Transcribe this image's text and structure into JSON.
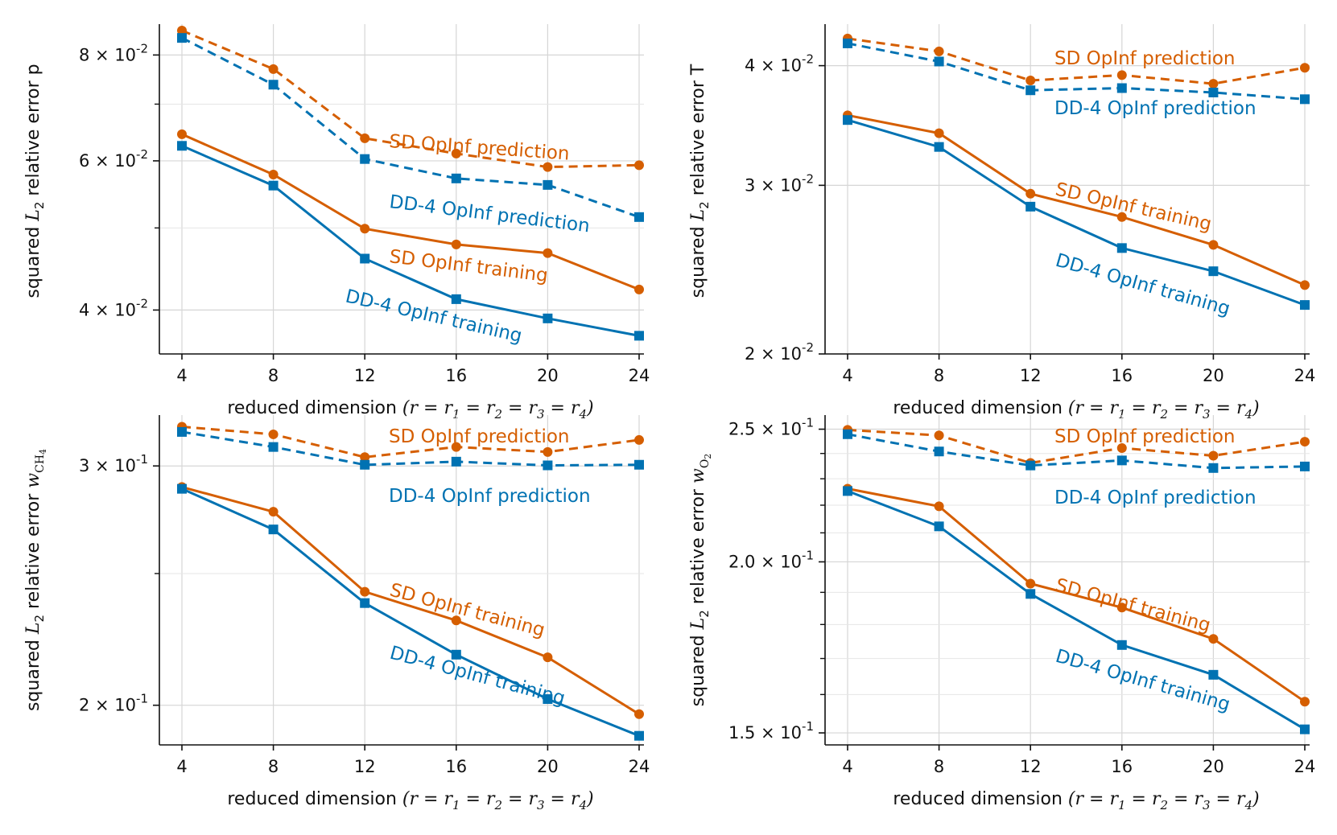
{
  "chart_data": [
    {
      "type": "line",
      "x": [
        4,
        8,
        12,
        16,
        20,
        24
      ],
      "xlabel": "reduced dimension (r = r1 = r2 = r3 = r4)",
      "ylabel": "squared L2 relative error p",
      "yscale": "log",
      "ylim": [
        0.0355,
        0.087
      ],
      "yticks_major": [
        {
          "v": 0.04,
          "label": "4 × 10^-2"
        },
        {
          "v": 0.06,
          "label": "6 × 10^-2"
        },
        {
          "v": 0.08,
          "label": "8 × 10^-2"
        }
      ],
      "yticks_minor": [
        0.05,
        0.07
      ],
      "series": [
        {
          "name": "SD OpInf prediction",
          "color": "#d55e00",
          "linestyle": "dashed",
          "marker": "circle",
          "values": [
            0.0855,
            0.077,
            0.0638,
            0.0612,
            0.059,
            0.0593
          ]
        },
        {
          "name": "DD-4 OpInf prediction",
          "color": "#0072b2",
          "linestyle": "dashed",
          "marker": "square",
          "values": [
            0.0838,
            0.0738,
            0.0603,
            0.0572,
            0.0562,
            0.0515
          ]
        },
        {
          "name": "SD OpInf training",
          "color": "#d55e00",
          "linestyle": "solid",
          "marker": "circle",
          "values": [
            0.0645,
            0.0578,
            0.0499,
            0.0478,
            0.0467,
            0.0423
          ]
        },
        {
          "name": "DD-4 OpInf training",
          "color": "#0072b2",
          "linestyle": "solid",
          "marker": "square",
          "values": [
            0.0625,
            0.0561,
            0.046,
            0.0412,
            0.0391,
            0.0373
          ]
        }
      ]
    },
    {
      "type": "line",
      "x": [
        4,
        8,
        12,
        16,
        20,
        24
      ],
      "xlabel": "reduced dimension (r = r1 = r2 = r3 = r4)",
      "ylabel": "squared L2 relative error T",
      "yscale": "log",
      "ylim": [
        0.02,
        0.0442
      ],
      "yticks_major": [
        {
          "v": 0.02,
          "label": "2 × 10^-2"
        },
        {
          "v": 0.03,
          "label": "3 × 10^-2"
        },
        {
          "v": 0.04,
          "label": "4 × 10^-2"
        }
      ],
      "yticks_minor": [],
      "series": [
        {
          "name": "SD OpInf prediction",
          "color": "#d55e00",
          "linestyle": "dashed",
          "marker": "circle",
          "values": [
            0.0427,
            0.0414,
            0.0386,
            0.0391,
            0.0383,
            0.0398
          ]
        },
        {
          "name": "DD-4 OpInf prediction",
          "color": "#0072b2",
          "linestyle": "dashed",
          "marker": "square",
          "values": [
            0.0422,
            0.0404,
            0.0377,
            0.0379,
            0.0375,
            0.0369
          ]
        },
        {
          "name": "SD OpInf training",
          "color": "#d55e00",
          "linestyle": "solid",
          "marker": "circle",
          "values": [
            0.0355,
            0.034,
            0.0294,
            0.0278,
            0.026,
            0.0236
          ]
        },
        {
          "name": "DD-4 OpInf training",
          "color": "#0072b2",
          "linestyle": "solid",
          "marker": "square",
          "values": [
            0.0351,
            0.0329,
            0.0285,
            0.0258,
            0.0244,
            0.0225
          ]
        }
      ]
    },
    {
      "type": "line",
      "x": [
        4,
        8,
        12,
        16,
        20,
        24
      ],
      "xlabel": "reduced dimension (r = r1 = r2 = r3 = r4)",
      "ylabel": "squared L2 relative error wCH4",
      "yscale": "log",
      "ylim": [
        0.187,
        0.327
      ],
      "yticks_major": [
        {
          "v": 0.2,
          "label": "2 × 10^-1"
        },
        {
          "v": 0.3,
          "label": "3 × 10^-1"
        }
      ],
      "yticks_minor": [
        0.25
      ],
      "series": [
        {
          "name": "SD OpInf prediction",
          "color": "#d55e00",
          "linestyle": "dashed",
          "marker": "circle",
          "values": [
            0.3206,
            0.3165,
            0.3045,
            0.3098,
            0.3072,
            0.3135
          ]
        },
        {
          "name": "DD-4 OpInf prediction",
          "color": "#0072b2",
          "linestyle": "dashed",
          "marker": "square",
          "values": [
            0.3178,
            0.3098,
            0.3006,
            0.3022,
            0.3003,
            0.3006
          ]
        },
        {
          "name": "SD OpInf training",
          "color": "#d55e00",
          "linestyle": "solid",
          "marker": "circle",
          "values": [
            0.2895,
            0.2776,
            0.2424,
            0.2309,
            0.2169,
            0.197
          ]
        },
        {
          "name": "DD-4 OpInf training",
          "color": "#0072b2",
          "linestyle": "solid",
          "marker": "square",
          "values": [
            0.2886,
            0.2694,
            0.2378,
            0.2179,
            0.2021,
            0.1899
          ]
        }
      ]
    },
    {
      "type": "line",
      "x": [
        4,
        8,
        12,
        16,
        20,
        24
      ],
      "xlabel": "reduced dimension (r = r1 = r2 = r3 = r4)",
      "ylabel": "squared L2 relative error wO2",
      "yscale": "log",
      "ylim": [
        0.147,
        0.256
      ],
      "yticks_major": [
        {
          "v": 0.15,
          "label": "1.5 × 10^-1"
        },
        {
          "v": 0.2,
          "label": "2.0 × 10^-1"
        },
        {
          "v": 0.25,
          "label": "2.5 × 10^-1"
        }
      ],
      "yticks_minor": [
        0.16,
        0.17,
        0.18,
        0.19,
        0.21,
        0.22,
        0.23,
        0.24
      ],
      "series": [
        {
          "name": "SD OpInf prediction",
          "color": "#d55e00",
          "linestyle": "dashed",
          "marker": "circle",
          "values": [
            0.2497,
            0.2474,
            0.2362,
            0.2422,
            0.2391,
            0.2448
          ]
        },
        {
          "name": "DD-4 OpInf prediction",
          "color": "#0072b2",
          "linestyle": "dashed",
          "marker": "square",
          "values": [
            0.2479,
            0.2408,
            0.2352,
            0.2372,
            0.2342,
            0.2348
          ]
        },
        {
          "name": "SD OpInf training",
          "color": "#d55e00",
          "linestyle": "solid",
          "marker": "circle",
          "values": [
            0.2262,
            0.2196,
            0.1928,
            0.1852,
            0.1757,
            0.1581
          ]
        },
        {
          "name": "DD-4 OpInf training",
          "color": "#0072b2",
          "linestyle": "solid",
          "marker": "square",
          "values": [
            0.2253,
            0.2123,
            0.1895,
            0.1739,
            0.1654,
            0.1509
          ]
        }
      ]
    }
  ]
}
